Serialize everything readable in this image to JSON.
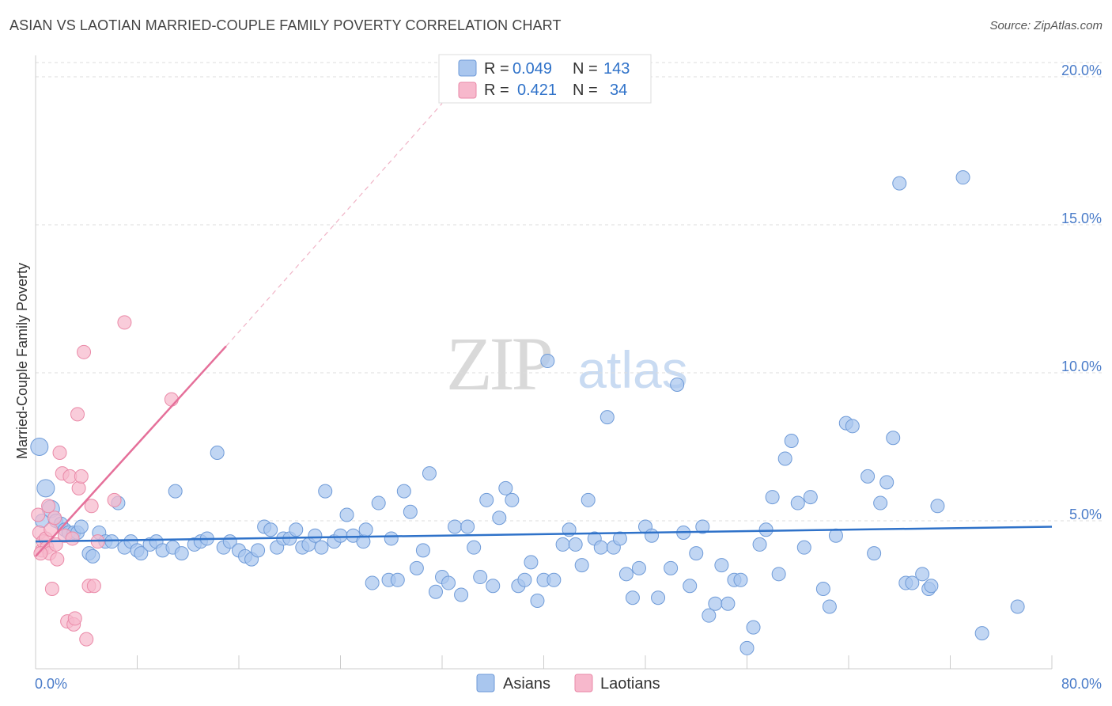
{
  "header": {
    "title": "ASIAN VS LAOTIAN MARRIED-COUPLE FAMILY POVERTY CORRELATION CHART",
    "source": "Source: ZipAtlas.com"
  },
  "watermark": {
    "part1": "ZIP",
    "part2": "atlas"
  },
  "colors": {
    "asian_fill": "#a9c6ee",
    "asian_stroke": "#6f9bd8",
    "asian_line": "#2f72c9",
    "laotian_fill": "#f7b8cc",
    "laotian_stroke": "#ea8aa8",
    "laotian_line": "#e5709a",
    "accent_text": "#4a7cc9",
    "grid": "#dddddd"
  },
  "stats_legend": {
    "rows": [
      {
        "r_label": "R = ",
        "r_value": "0.049",
        "n_label": "N = ",
        "n_value": "143"
      },
      {
        "r_label": "R = ",
        "r_value": "0.421",
        "n_label": "N = ",
        "n_value": "34"
      }
    ]
  },
  "chart_data": {
    "type": "scatter",
    "title": "ASIAN VS LAOTIAN MARRIED-COUPLE FAMILY POVERTY CORRELATION CHART",
    "xlabel": "",
    "ylabel": "Married-Couple Family Poverty",
    "xlim": [
      0,
      80
    ],
    "ylim": [
      0,
      20
    ],
    "x_tick_labels": [
      "0.0%",
      "80.0%"
    ],
    "y_ticks": [
      5,
      10,
      15,
      20
    ],
    "y_tick_labels": [
      "5.0%",
      "10.0%",
      "15.0%",
      "20.0%"
    ],
    "legend": [
      "Asians",
      "Laotians"
    ],
    "series": [
      {
        "name": "Asians",
        "r": 0.049,
        "n": 143,
        "trend": {
          "x": [
            0,
            80
          ],
          "y": [
            4.3,
            4.8
          ]
        },
        "points": [
          [
            0.3,
            7.5
          ],
          [
            0.8,
            6.1
          ],
          [
            1.2,
            5.4
          ],
          [
            1.6,
            5.0
          ],
          [
            2.0,
            4.9
          ],
          [
            2.3,
            4.7
          ],
          [
            2.6,
            4.6
          ],
          [
            3.0,
            4.6
          ],
          [
            3.3,
            4.6
          ],
          [
            3.6,
            4.8
          ],
          [
            4.2,
            3.9
          ],
          [
            4.5,
            3.8
          ],
          [
            5.0,
            4.6
          ],
          [
            5.5,
            4.3
          ],
          [
            6.0,
            4.3
          ],
          [
            6.5,
            5.6
          ],
          [
            7.0,
            4.1
          ],
          [
            7.5,
            4.3
          ],
          [
            8.0,
            4.0
          ],
          [
            8.3,
            3.9
          ],
          [
            9.0,
            4.2
          ],
          [
            9.5,
            4.3
          ],
          [
            10.0,
            4.0
          ],
          [
            10.8,
            4.1
          ],
          [
            11.0,
            6.0
          ],
          [
            11.5,
            3.9
          ],
          [
            12.5,
            4.2
          ],
          [
            13.0,
            4.3
          ],
          [
            13.5,
            4.4
          ],
          [
            14.3,
            7.3
          ],
          [
            14.8,
            4.1
          ],
          [
            15.3,
            4.3
          ],
          [
            16.0,
            4.0
          ],
          [
            16.5,
            3.8
          ],
          [
            17.0,
            3.7
          ],
          [
            17.5,
            4.0
          ],
          [
            18.0,
            4.8
          ],
          [
            18.5,
            4.7
          ],
          [
            19.0,
            4.1
          ],
          [
            19.5,
            4.4
          ],
          [
            20.0,
            4.4
          ],
          [
            20.5,
            4.7
          ],
          [
            21.0,
            4.1
          ],
          [
            21.5,
            4.2
          ],
          [
            22.0,
            4.5
          ],
          [
            22.5,
            4.1
          ],
          [
            22.8,
            6.0
          ],
          [
            23.5,
            4.3
          ],
          [
            24.0,
            4.5
          ],
          [
            24.5,
            5.2
          ],
          [
            25.0,
            4.5
          ],
          [
            25.8,
            4.3
          ],
          [
            26.0,
            4.7
          ],
          [
            26.5,
            2.9
          ],
          [
            27.0,
            5.6
          ],
          [
            27.8,
            3.0
          ],
          [
            28.0,
            4.4
          ],
          [
            28.5,
            3.0
          ],
          [
            29.0,
            6.0
          ],
          [
            29.5,
            5.3
          ],
          [
            30.0,
            3.4
          ],
          [
            30.5,
            4.0
          ],
          [
            31.0,
            6.6
          ],
          [
            31.5,
            2.6
          ],
          [
            32.0,
            3.1
          ],
          [
            32.5,
            2.9
          ],
          [
            33.0,
            4.8
          ],
          [
            33.5,
            2.5
          ],
          [
            34.0,
            4.8
          ],
          [
            34.5,
            4.1
          ],
          [
            35.0,
            3.1
          ],
          [
            35.5,
            5.7
          ],
          [
            36.0,
            2.8
          ],
          [
            36.5,
            5.1
          ],
          [
            37.0,
            6.1
          ],
          [
            37.5,
            5.7
          ],
          [
            38.0,
            2.8
          ],
          [
            38.5,
            3.0
          ],
          [
            39.0,
            3.6
          ],
          [
            39.5,
            2.3
          ],
          [
            40.0,
            3.0
          ],
          [
            40.3,
            10.4
          ],
          [
            40.8,
            3.0
          ],
          [
            41.5,
            4.2
          ],
          [
            42.0,
            4.7
          ],
          [
            42.5,
            4.2
          ],
          [
            43.0,
            3.5
          ],
          [
            43.5,
            5.7
          ],
          [
            44.0,
            4.4
          ],
          [
            44.5,
            4.1
          ],
          [
            45.0,
            8.5
          ],
          [
            45.5,
            4.1
          ],
          [
            46.0,
            4.4
          ],
          [
            46.5,
            3.2
          ],
          [
            47.0,
            2.4
          ],
          [
            47.5,
            3.4
          ],
          [
            48.0,
            4.8
          ],
          [
            48.5,
            4.5
          ],
          [
            49.0,
            2.4
          ],
          [
            50.0,
            3.4
          ],
          [
            50.5,
            9.6
          ],
          [
            51.0,
            4.6
          ],
          [
            51.5,
            2.8
          ],
          [
            52.0,
            3.9
          ],
          [
            52.5,
            4.8
          ],
          [
            53.0,
            1.8
          ],
          [
            53.5,
            2.2
          ],
          [
            54.0,
            3.5
          ],
          [
            54.5,
            2.2
          ],
          [
            55.0,
            3.0
          ],
          [
            55.5,
            3.0
          ],
          [
            56.0,
            0.7
          ],
          [
            56.5,
            1.4
          ],
          [
            57.0,
            4.2
          ],
          [
            57.5,
            4.7
          ],
          [
            58.0,
            5.8
          ],
          [
            58.5,
            3.2
          ],
          [
            59.0,
            7.1
          ],
          [
            59.5,
            7.7
          ],
          [
            60.0,
            5.6
          ],
          [
            60.5,
            4.1
          ],
          [
            61.0,
            5.8
          ],
          [
            62.0,
            2.7
          ],
          [
            62.5,
            2.1
          ],
          [
            63.0,
            4.5
          ],
          [
            63.8,
            8.3
          ],
          [
            64.3,
            8.2
          ],
          [
            65.5,
            6.5
          ],
          [
            66.0,
            3.9
          ],
          [
            66.5,
            5.6
          ],
          [
            67.0,
            6.3
          ],
          [
            67.5,
            7.8
          ],
          [
            68.0,
            16.4
          ],
          [
            68.5,
            2.9
          ],
          [
            69.0,
            2.9
          ],
          [
            69.8,
            3.2
          ],
          [
            70.3,
            2.7
          ],
          [
            70.5,
            2.8
          ],
          [
            71.0,
            5.5
          ],
          [
            73.0,
            16.6
          ],
          [
            74.5,
            1.2
          ],
          [
            77.3,
            2.1
          ],
          [
            0.5,
            5.0
          ]
        ]
      },
      {
        "name": "Laotians",
        "r": 0.421,
        "n": 34,
        "trend": {
          "x": [
            0,
            15
          ],
          "y": [
            3.8,
            10.9
          ]
        },
        "trend_extension": {
          "x": [
            15,
            32
          ],
          "y": [
            10.9,
            19.1
          ]
        },
        "points": [
          [
            0.2,
            5.2
          ],
          [
            0.3,
            4.6
          ],
          [
            0.5,
            4.0
          ],
          [
            0.6,
            4.3
          ],
          [
            0.8,
            4.4
          ],
          [
            0.9,
            4.1
          ],
          [
            1.0,
            5.5
          ],
          [
            1.1,
            3.9
          ],
          [
            1.2,
            4.7
          ],
          [
            1.3,
            2.7
          ],
          [
            1.5,
            5.1
          ],
          [
            1.6,
            4.2
          ],
          [
            1.7,
            3.7
          ],
          [
            1.9,
            7.3
          ],
          [
            2.1,
            6.6
          ],
          [
            2.3,
            4.5
          ],
          [
            2.5,
            1.6
          ],
          [
            2.7,
            6.5
          ],
          [
            2.9,
            4.4
          ],
          [
            3.0,
            1.5
          ],
          [
            3.1,
            1.7
          ],
          [
            3.3,
            8.6
          ],
          [
            3.4,
            6.1
          ],
          [
            3.6,
            6.5
          ],
          [
            3.8,
            10.7
          ],
          [
            4.0,
            1.0
          ],
          [
            4.2,
            2.8
          ],
          [
            4.4,
            5.5
          ],
          [
            4.6,
            2.8
          ],
          [
            4.9,
            4.3
          ],
          [
            6.2,
            5.7
          ],
          [
            7.0,
            11.7
          ],
          [
            10.7,
            9.1
          ],
          [
            0.4,
            3.9
          ]
        ]
      }
    ]
  }
}
